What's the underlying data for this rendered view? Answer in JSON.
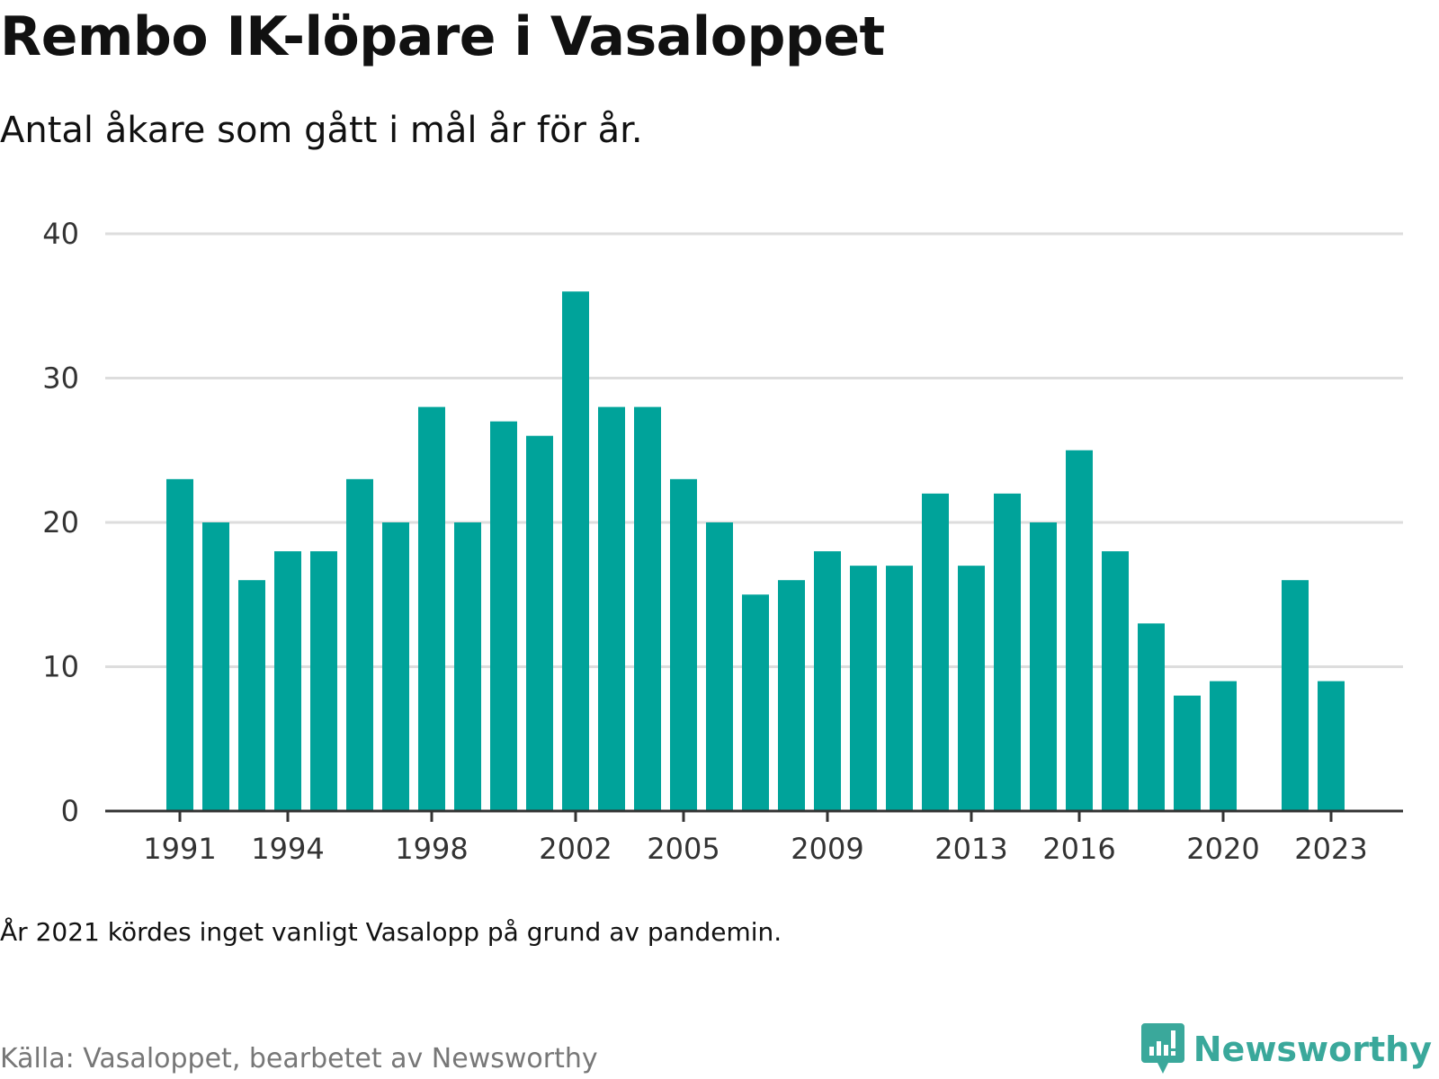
{
  "title": "Rembo IK-löpare i Vasaloppet",
  "subtitle": "Antal åkare som gått i mål år för år.",
  "note": "År 2021 kördes inget vanligt Vasalopp på grund av pandemin.",
  "source": "Källa: Vasaloppet, bearbetet av Newsworthy",
  "brand": {
    "name": "Newsworthy",
    "icon": "newsworthy-logo-icon",
    "color": "#3aa89b"
  },
  "colors": {
    "bar": "#00a39a",
    "grid": "#dddddd",
    "axis": "#333333"
  },
  "chart_data": {
    "type": "bar",
    "title": "Rembo IK-löpare i Vasaloppet",
    "subtitle": "Antal åkare som gått i mål år för år.",
    "xlabel": "",
    "ylabel": "",
    "ylim": [
      0,
      40
    ],
    "yticks": [
      0,
      10,
      20,
      30,
      40
    ],
    "xticks": [
      1991,
      1994,
      1998,
      2002,
      2005,
      2009,
      2013,
      2016,
      2020,
      2023
    ],
    "grid": true,
    "legend": "none",
    "categories": [
      1991,
      1992,
      1993,
      1994,
      1995,
      1996,
      1997,
      1998,
      1999,
      2000,
      2001,
      2002,
      2003,
      2004,
      2005,
      2006,
      2007,
      2008,
      2009,
      2010,
      2011,
      2012,
      2013,
      2014,
      2015,
      2016,
      2017,
      2018,
      2019,
      2020,
      2021,
      2022,
      2023
    ],
    "values": [
      23,
      20,
      16,
      18,
      18,
      23,
      20,
      28,
      20,
      27,
      26,
      36,
      28,
      28,
      23,
      20,
      15,
      16,
      18,
      17,
      17,
      22,
      17,
      22,
      20,
      25,
      18,
      13,
      8,
      9,
      null,
      16,
      9
    ]
  }
}
